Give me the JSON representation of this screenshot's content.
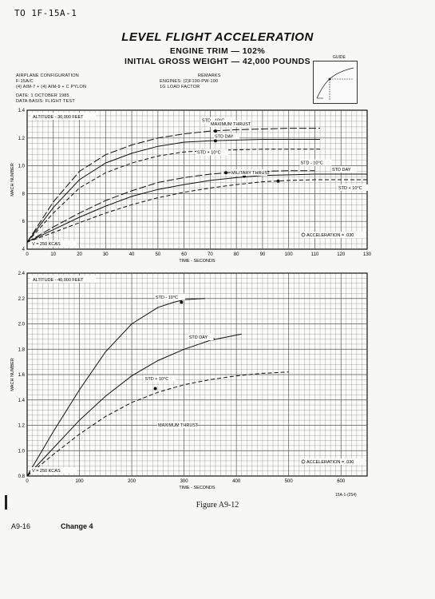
{
  "header": {
    "doc_id": "TO 1F-15A-1",
    "title": "LEVEL FLIGHT ACCELERATION",
    "subtitle1": "ENGINE TRIM — 102%",
    "subtitle2": "INITIAL GROSS WEIGHT — 42,000 POUNDS"
  },
  "config": {
    "heading": "AIRPLANE CONFIGURATION",
    "line1": "F-15A/C",
    "line2": "(4) AIM-7 + (4) AIM-9 + C PYLON",
    "date": "DATE: 1 OCTOBER 1985",
    "basis": "DATA BASIS: FLIGHT TEST"
  },
  "remarks": {
    "heading": "REMARKS",
    "line1": "ENGINES: (2)F100-PW-100",
    "line2": "1G LOAD FACTOR"
  },
  "guide": {
    "label": "GUIDE"
  },
  "footer": {
    "figure": "Figure A9-12",
    "page": "A9-16",
    "change": "Change 4",
    "ref": "15A-1-(254)"
  },
  "chart_data": [
    {
      "type": "line",
      "title": "ALTITUDE - 30,000 FEET",
      "xlabel": "TIME - SECONDS",
      "ylabel": "MACH NUMBER",
      "xlim": [
        0,
        130
      ],
      "ylim": [
        0.4,
        1.4
      ],
      "xticks": [
        "0",
        "10",
        "20",
        "30",
        "40",
        "50",
        "60",
        "70",
        "80",
        "90",
        "100",
        "110",
        "120",
        "130"
      ],
      "yticks": [
        "4",
        "6",
        "8",
        "1.0",
        "1.2",
        "1.4"
      ],
      "grid": true,
      "annotations": {
        "start": "V = 250 KCAS",
        "accel": "ACCELERATION = .030",
        "max_thrust": "MAXIMUM THRUST",
        "mil_thrust": "MILITARY THRUST"
      },
      "series": [
        {
          "name": "STD - 10°C",
          "group": "max",
          "style": "long-dash",
          "x": [
            0,
            10,
            20,
            30,
            40,
            50,
            60,
            70,
            80,
            90,
            100,
            112
          ],
          "y": [
            0.45,
            0.74,
            0.96,
            1.08,
            1.15,
            1.2,
            1.23,
            1.25,
            1.26,
            1.265,
            1.27,
            1.27
          ]
        },
        {
          "name": "STD DAY",
          "group": "max",
          "style": "solid",
          "x": [
            0,
            10,
            20,
            30,
            40,
            50,
            60,
            70,
            80,
            90,
            100,
            112
          ],
          "y": [
            0.45,
            0.7,
            0.9,
            1.02,
            1.09,
            1.14,
            1.17,
            1.18,
            1.185,
            1.19,
            1.19,
            1.19
          ]
        },
        {
          "name": "STD + 10°C",
          "group": "max",
          "style": "dash",
          "x": [
            0,
            10,
            20,
            30,
            40,
            50,
            60,
            70,
            80,
            90,
            100,
            112
          ],
          "y": [
            0.45,
            0.66,
            0.84,
            0.95,
            1.02,
            1.07,
            1.1,
            1.11,
            1.115,
            1.12,
            1.12,
            1.12
          ]
        },
        {
          "name": "STD - 10°C",
          "group": "mil",
          "style": "long-dash",
          "x": [
            0,
            10,
            20,
            30,
            40,
            50,
            60,
            70,
            80,
            90,
            100,
            110
          ],
          "y": [
            0.45,
            0.56,
            0.66,
            0.75,
            0.82,
            0.88,
            0.915,
            0.94,
            0.955,
            0.96,
            0.965,
            0.965
          ]
        },
        {
          "name": "STD DAY",
          "group": "mil",
          "style": "solid",
          "x": [
            0,
            10,
            20,
            30,
            40,
            50,
            60,
            70,
            80,
            90,
            100,
            110,
            120,
            130
          ],
          "y": [
            0.45,
            0.54,
            0.63,
            0.71,
            0.78,
            0.83,
            0.865,
            0.895,
            0.915,
            0.93,
            0.935,
            0.94,
            0.94,
            0.94
          ]
        },
        {
          "name": "STD + 10°C",
          "group": "mil",
          "style": "dash",
          "x": [
            0,
            10,
            20,
            30,
            40,
            50,
            60,
            70,
            80,
            90,
            100,
            110,
            120,
            130
          ],
          "y": [
            0.45,
            0.52,
            0.59,
            0.66,
            0.72,
            0.77,
            0.81,
            0.84,
            0.865,
            0.885,
            0.895,
            0.9,
            0.9,
            0.9
          ]
        }
      ],
      "markers": [
        {
          "x": 72,
          "y": 1.25
        },
        {
          "x": 72,
          "y": 1.18
        },
        {
          "x": 67,
          "y": 1.11
        },
        {
          "x": 76,
          "y": 0.95
        },
        {
          "x": 83,
          "y": 0.925
        },
        {
          "x": 96,
          "y": 0.89
        }
      ]
    },
    {
      "type": "line",
      "title": "ALTITUDE - 40,000 FEET",
      "xlabel": "TIME - SECONDS",
      "ylabel": "MACH NUMBER",
      "xlim": [
        0,
        650
      ],
      "ylim": [
        0.8,
        2.4
      ],
      "xticks": [
        "0",
        "100",
        "200",
        "300",
        "400",
        "500",
        "600"
      ],
      "yticks": [
        "0.8",
        "1.0",
        "1.2",
        "1.4",
        "1.6",
        "1.8",
        "2.0",
        "2.2",
        "2.4"
      ],
      "grid": true,
      "annotations": {
        "start": "V = 250 KCAS",
        "accel": "ACCELERATION = .030",
        "max_thrust": "MAXIMUM THRUST"
      },
      "series": [
        {
          "name": "STD - 10°C",
          "style": "solid",
          "x": [
            0,
            50,
            100,
            150,
            200,
            250,
            280,
            300,
            340
          ],
          "y": [
            0.8,
            1.15,
            1.48,
            1.78,
            2.0,
            2.13,
            2.17,
            2.19,
            2.2
          ]
        },
        {
          "name": "STD DAY",
          "style": "solid",
          "x": [
            0,
            50,
            100,
            150,
            200,
            250,
            300,
            350,
            410
          ],
          "y": [
            0.8,
            1.02,
            1.24,
            1.43,
            1.59,
            1.71,
            1.8,
            1.87,
            1.92
          ]
        },
        {
          "name": "STD + 10°C",
          "style": "dash",
          "x": [
            0,
            50,
            100,
            150,
            200,
            250,
            300,
            350,
            400,
            450,
            500
          ],
          "y": [
            0.8,
            0.97,
            1.13,
            1.27,
            1.38,
            1.46,
            1.52,
            1.56,
            1.59,
            1.61,
            1.62
          ]
        }
      ],
      "markers": [
        {
          "x": 295,
          "y": 2.17
        },
        {
          "x": 355,
          "y": 1.88
        },
        {
          "x": 245,
          "y": 1.49
        }
      ]
    }
  ]
}
